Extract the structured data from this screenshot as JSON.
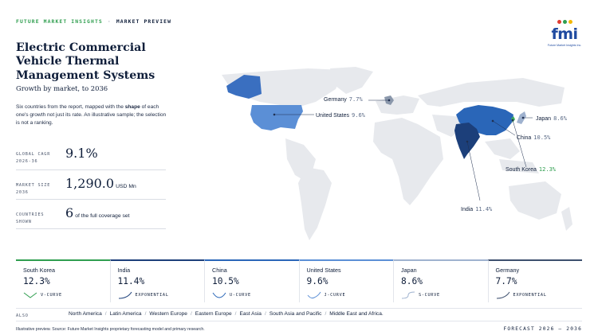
{
  "header": {
    "brand": "FUTURE MARKET INSIGHTS",
    "separator": "·",
    "section": "MARKET PREVIEW"
  },
  "logo": {
    "text": "fmi",
    "tagline": "Future Market Insights Inc.",
    "colors": [
      "#e03c31",
      "#2f9e4f",
      "#f2b705"
    ]
  },
  "title": "Electric Commercial Vehicle Thermal Management Systems",
  "subtitle": "Growth by market, to 2036",
  "description": {
    "before": "Six countries from the report, mapped with the ",
    "bold": "shape",
    "after": " of each one's growth not just its rate. An illustrative sample; the selection is not a ranking."
  },
  "stats": [
    {
      "label_line1": "GLOBAL CAGR",
      "label_line2": "2026-36",
      "value": "9.1%",
      "unit": ""
    },
    {
      "label_line1": "MARKET SIZE",
      "label_line2": "2036",
      "value": "1,290.0",
      "unit": "USD Mn"
    },
    {
      "label_line1": "COUNTRIES",
      "label_line2": "SHOWN",
      "value": "6",
      "unit": "of the full coverage set"
    }
  ],
  "map": {
    "labels": [
      {
        "name": "Germany",
        "value": "7.7%"
      },
      {
        "name": "United States",
        "value": "9.6%"
      },
      {
        "name": "Japan",
        "value": "8.6%"
      },
      {
        "name": "China",
        "value": "10.5%"
      },
      {
        "name": "South Korea",
        "value": "12.3%"
      },
      {
        "name": "India",
        "value": "11.4%"
      }
    ],
    "colors": {
      "land": "#e7e9ed",
      "us": "#5b8fd6",
      "china": "#2a66b8",
      "india": "#1c3f7a",
      "germany": "#8a97ab",
      "japan": "#9fb2cf",
      "korea": "#3fae5c",
      "alaska": "#3a6fc0"
    }
  },
  "cards": [
    {
      "country": "South Korea",
      "value": "12.3%",
      "curve": "V-CURVE",
      "accent": "#2f9e4f"
    },
    {
      "country": "India",
      "value": "11.4%",
      "curve": "EXPONENTIAL",
      "accent": "#1c3f7a"
    },
    {
      "country": "China",
      "value": "10.5%",
      "curve": "U-CURVE",
      "accent": "#2a66b8"
    },
    {
      "country": "United States",
      "value": "9.6%",
      "curve": "J-CURVE",
      "accent": "#5b8fd6"
    },
    {
      "country": "Japan",
      "value": "8.6%",
      "curve": "S-CURVE",
      "accent": "#9fb2cf"
    },
    {
      "country": "Germany",
      "value": "7.7%",
      "curve": "EXPONENTIAL",
      "accent": "#3d4f6e"
    }
  ],
  "also": {
    "label": "ALSO",
    "items": [
      "North America",
      "Latin America",
      "Western Europe",
      "Eastern Europe",
      "East Asia",
      "South Asia and Pacific",
      "Middle East and Africa."
    ]
  },
  "footer": {
    "note": "Illustrative preview. Source: Future Market Insights proprietary forecasting model and primary research.",
    "forecast": "FORECAST 2026 – 2036"
  }
}
